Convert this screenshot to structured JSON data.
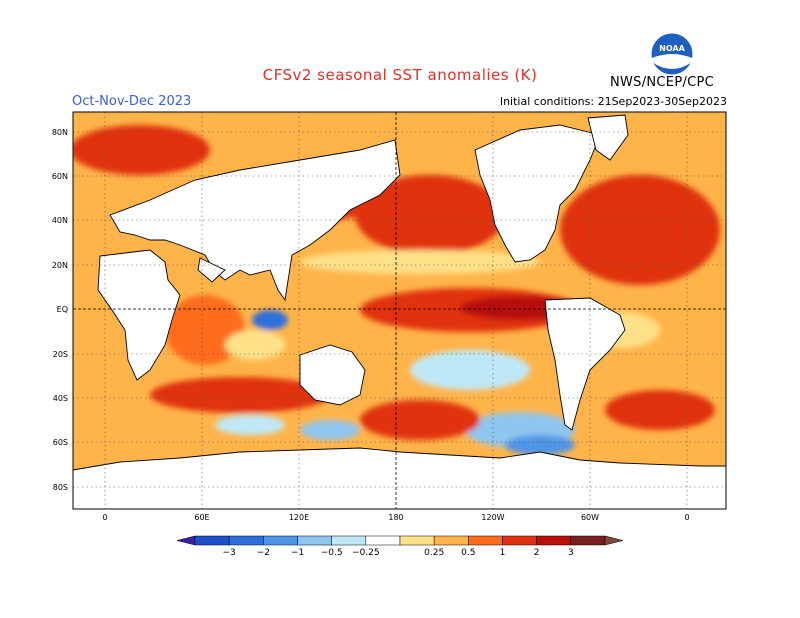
{
  "title": "CFSv2 seasonal SST anomalies (K)",
  "season": "Oct-Nov-Dec 2023",
  "initial_conditions": "Initial conditions: 21Sep2023-30Sep2023",
  "agency": "NWS/NCEP/CPC",
  "logo_text": "NOAA",
  "lat_labels": [
    "80N",
    "60N",
    "40N",
    "20N",
    "EQ",
    "20S",
    "40S",
    "60S",
    "80S"
  ],
  "lon_labels": [
    "0",
    "60E",
    "120E",
    "180",
    "120W",
    "60W",
    "0"
  ],
  "colorbar": {
    "labels": [
      "−3",
      "−2",
      "−1",
      "−0.5",
      "−0.25",
      "0.25",
      "0.5",
      "1",
      "2",
      "3"
    ],
    "colors": [
      "#3c1fa6",
      "#1f4fc8",
      "#2f6fdc",
      "#4f95e6",
      "#8fc6f0",
      "#bfe8f6",
      "#ffffff",
      "#ffe18a",
      "#ffb44a",
      "#ff6c1a",
      "#e0300f",
      "#b80f0a",
      "#7a2020",
      "#7a4a3a"
    ],
    "units": "K"
  },
  "colors": {
    "warm": "#ff6c1a",
    "hot": "#e0300f",
    "cool": "#4f95e6",
    "land": "#ffffff",
    "coast": "#000000"
  }
}
